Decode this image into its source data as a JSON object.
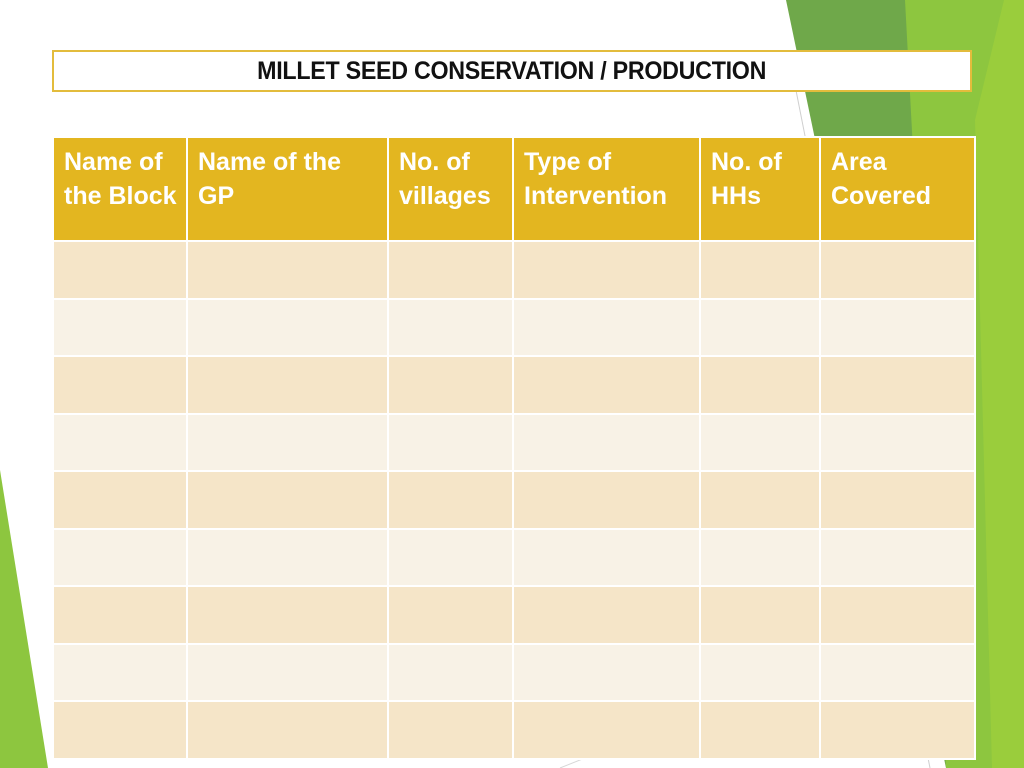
{
  "slide": {
    "title": "MILLET SEED CONSERVATION / PRODUCTION",
    "accent_colors": {
      "green_light": "#8DC63F",
      "green_dark": "#5F9E45",
      "gold": "#E3B620"
    }
  },
  "table": {
    "columns": [
      "Name of the Block",
      "Name of the GP",
      "No. of villages",
      "Type of Intervention",
      "No. of HHs",
      "Area Covered"
    ],
    "rows": [
      [
        "",
        "",
        "",
        "",
        "",
        ""
      ],
      [
        "",
        "",
        "",
        "",
        "",
        ""
      ],
      [
        "",
        "",
        "",
        "",
        "",
        ""
      ],
      [
        "",
        "",
        "",
        "",
        "",
        ""
      ],
      [
        "",
        "",
        "",
        "",
        "",
        ""
      ],
      [
        "",
        "",
        "",
        "",
        "",
        ""
      ],
      [
        "",
        "",
        "",
        "",
        "",
        ""
      ],
      [
        "",
        "",
        "",
        "",
        "",
        ""
      ],
      [
        "",
        "",
        "",
        "",
        "",
        ""
      ]
    ]
  }
}
